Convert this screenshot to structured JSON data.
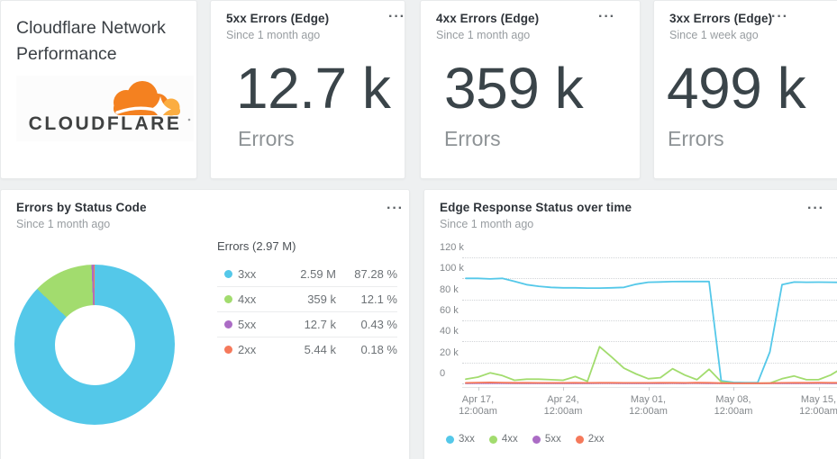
{
  "icons": {
    "overflow_menu": "···"
  },
  "title_card": {
    "title_line1": "Cloudflare Network",
    "title_line2": "Performance",
    "logo_text": "CLOUDFLARE"
  },
  "kpis": [
    {
      "title": "5xx Errors (Edge)",
      "subtitle": "Since 1 month ago",
      "value": "12.7 k",
      "unit": "Errors"
    },
    {
      "title": "4xx Errors (Edge)",
      "subtitle": "Since 1 month ago",
      "value": "359 k",
      "unit": "Errors"
    },
    {
      "title": "3xx Errors (Edge)",
      "subtitle": "Since 1 week ago",
      "value": "499 k",
      "unit": "Errors"
    }
  ],
  "donut_card": {
    "title": "Errors by Status Code",
    "subtitle": "Since 1 month ago",
    "table_title": "Errors (2.97 M)",
    "rows": [
      {
        "label": "3xx",
        "value": "2.59 M",
        "pct": "87.28 %",
        "color": "#54c8e9"
      },
      {
        "label": "4xx",
        "value": "359 k",
        "pct": "12.1 %",
        "color": "#a2dc6e"
      },
      {
        "label": "5xx",
        "value": "12.7 k",
        "pct": "0.43 %",
        "color": "#ab6cc5"
      },
      {
        "label": "2xx",
        "value": "5.44 k",
        "pct": "0.18 %",
        "color": "#f5795b"
      }
    ]
  },
  "chart_card": {
    "title": "Edge Response Status over time",
    "subtitle": "Since 1 month ago"
  },
  "chart_data": [
    {
      "type": "pie",
      "donut": true,
      "title": "Errors by Status Code",
      "total_label": "Errors (2.97 M)",
      "labels": [
        "3xx",
        "4xx",
        "5xx",
        "2xx"
      ],
      "values_pct": [
        87.28,
        12.1,
        0.43,
        0.18
      ],
      "values_label": [
        "2.59 M",
        "359 k",
        "12.7 k",
        "5.44 k"
      ],
      "colors": [
        "#54c8e9",
        "#a2dc6e",
        "#ab6cc5",
        "#f5795b"
      ],
      "start_angle_deg": 0,
      "direction": "clockwise"
    },
    {
      "type": "line",
      "title": "Edge Response Status over time",
      "xlabel": "",
      "ylabel": "",
      "ylim_k": [
        0,
        120
      ],
      "grid": "dotted-horizontal",
      "legend_position": "bottom-left",
      "y_ticks": [
        {
          "value": 120,
          "label": "120 k"
        },
        {
          "value": 100,
          "label": "100 k"
        },
        {
          "value": 80,
          "label": "80 k"
        },
        {
          "value": 60,
          "label": "60 k"
        },
        {
          "value": 40,
          "label": "40 k"
        },
        {
          "value": 20,
          "label": "20 k"
        },
        {
          "value": 0,
          "label": "0"
        }
      ],
      "x_ticks": [
        {
          "day": 1,
          "line1": "Apr 17,",
          "line2": "12:00am"
        },
        {
          "day": 8,
          "line1": "Apr 24,",
          "line2": "12:00am"
        },
        {
          "day": 15,
          "line1": "May 01,",
          "line2": "12:00am"
        },
        {
          "day": 22,
          "line1": "May 08,",
          "line2": "12:00am"
        },
        {
          "day": 29,
          "line1": "May 15,",
          "line2": "12:00am"
        }
      ],
      "series": [
        {
          "name": "3xx",
          "color": "#54c8e9",
          "unit": "k",
          "values": [
            100,
            100,
            99.5,
            100,
            97.2,
            94,
            92.5,
            91.5,
            91,
            91,
            90.8,
            90.8,
            91,
            91.5,
            94.5,
            96.3,
            96.6,
            96.9,
            97,
            97,
            97,
            2.5,
            0.9,
            0.8,
            0.8,
            30,
            94,
            96.5,
            96.3,
            96.4,
            96.3,
            96.2
          ]
        },
        {
          "name": "4xx",
          "color": "#a2dc6e",
          "unit": "k",
          "values": [
            4,
            6,
            10,
            7.5,
            3,
            4,
            4,
            3.5,
            3,
            6.5,
            2,
            35,
            25,
            14.5,
            9,
            4.5,
            5.5,
            14,
            8,
            3.5,
            13.5,
            1.5,
            0.3,
            0.2,
            0.2,
            0.3,
            4.5,
            7,
            3.5,
            3.5,
            8,
            15
          ]
        },
        {
          "name": "5xx",
          "color": "#ab6cc5",
          "unit": "k",
          "values": [
            0.2,
            0.3,
            0.3,
            0.3,
            0.2,
            0.2,
            0.2,
            0.2,
            0.2,
            0.2,
            0.2,
            0.3,
            0.3,
            0.2,
            0.2,
            0.2,
            0.2,
            0.3,
            0.2,
            0.3,
            0.2,
            0.1,
            0.1,
            0.1,
            0.1,
            0.1,
            0.2,
            0.2,
            0.2,
            0.3,
            0.2,
            0.2
          ]
        },
        {
          "name": "2xx",
          "color": "#f5795b",
          "unit": "k",
          "values": [
            0.5,
            0.8,
            0.9,
            0.8,
            0.6,
            0.6,
            0.5,
            0.5,
            0.5,
            0.6,
            0.5,
            0.6,
            0.6,
            0.5,
            0.5,
            0.5,
            0.6,
            0.6,
            0.5,
            0.7,
            0.6,
            0.3,
            0.2,
            0.2,
            0.2,
            0.3,
            0.5,
            0.6,
            0.6,
            0.7,
            0.6,
            0.6
          ]
        }
      ]
    }
  ]
}
